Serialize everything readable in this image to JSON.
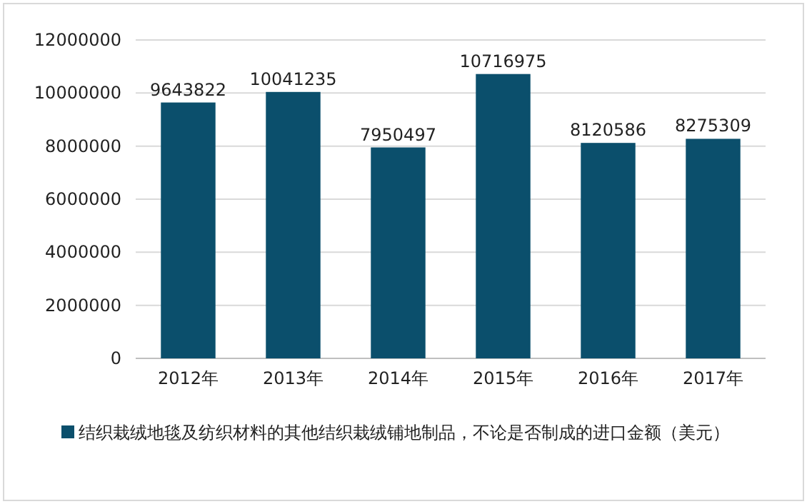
{
  "chart_data": {
    "type": "bar",
    "categories": [
      "2012年",
      "2013年",
      "2014年",
      "2015年",
      "2016年",
      "2017年"
    ],
    "series": [
      {
        "name": "结织栽绒地毯及纺织材料的其他结织栽绒铺地制品，不论是否制成的进口金额（美元）",
        "color": "#0b4f6c",
        "values": [
          9643822,
          10041235,
          7950497,
          10716975,
          8120586,
          8275309
        ]
      }
    ],
    "ylim": [
      0,
      12000000
    ],
    "yticks": [
      0,
      2000000,
      4000000,
      6000000,
      8000000,
      10000000,
      12000000
    ],
    "grid": "y",
    "legend": "bottom",
    "data_labels": true
  }
}
